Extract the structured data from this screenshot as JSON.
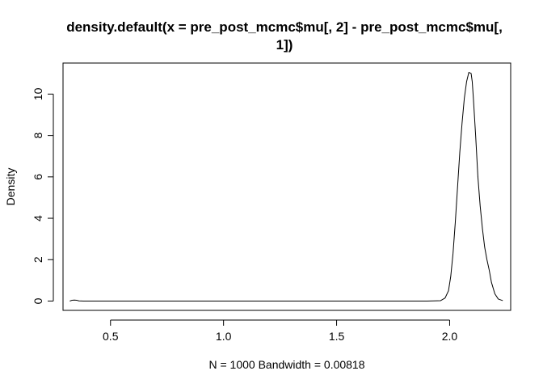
{
  "chart_data": {
    "type": "line",
    "title_line1": "density.default(x = pre_post_mcmc$mu[, 2] - pre_post_mcmc$mu[,",
    "title_line2": "1])",
    "xlabel": "N = 1000   Bandwidth = 0.00818",
    "ylabel": "Density",
    "xlim": [
      0.29,
      2.27
    ],
    "ylim": [
      -0.45,
      11.5
    ],
    "x_ticks": [
      0.5,
      1.0,
      1.5,
      2.0
    ],
    "x_tick_labels": [
      "0.5",
      "1.0",
      "1.5",
      "2.0"
    ],
    "y_ticks": [
      0,
      2,
      4,
      6,
      8,
      10
    ],
    "y_tick_labels": [
      "0",
      "2",
      "4",
      "6",
      "8",
      "10"
    ],
    "grid": false,
    "line_color": "#000000",
    "series": [
      {
        "x": [
          0.32,
          0.33,
          0.34,
          0.35,
          0.36,
          0.38,
          0.45,
          1.0,
          1.5,
          1.9,
          1.96,
          1.98,
          1.995,
          2.005,
          2.015,
          2.025,
          2.035,
          2.045,
          2.055,
          2.065,
          2.075,
          2.085,
          2.095,
          2.1,
          2.105,
          2.115,
          2.125,
          2.135,
          2.145,
          2.155,
          2.165,
          2.175,
          2.185,
          2.2,
          2.215,
          2.235
        ],
        "y": [
          0.0,
          0.04,
          0.05,
          0.04,
          0.01,
          0.0,
          0.0,
          0.0,
          0.0,
          0.0,
          0.02,
          0.15,
          0.5,
          1.2,
          2.3,
          3.8,
          5.5,
          7.2,
          8.6,
          9.8,
          10.6,
          11.05,
          11.0,
          10.6,
          9.8,
          8.0,
          6.0,
          4.6,
          3.5,
          2.6,
          2.0,
          1.5,
          0.9,
          0.35,
          0.1,
          0.02
        ]
      }
    ]
  }
}
